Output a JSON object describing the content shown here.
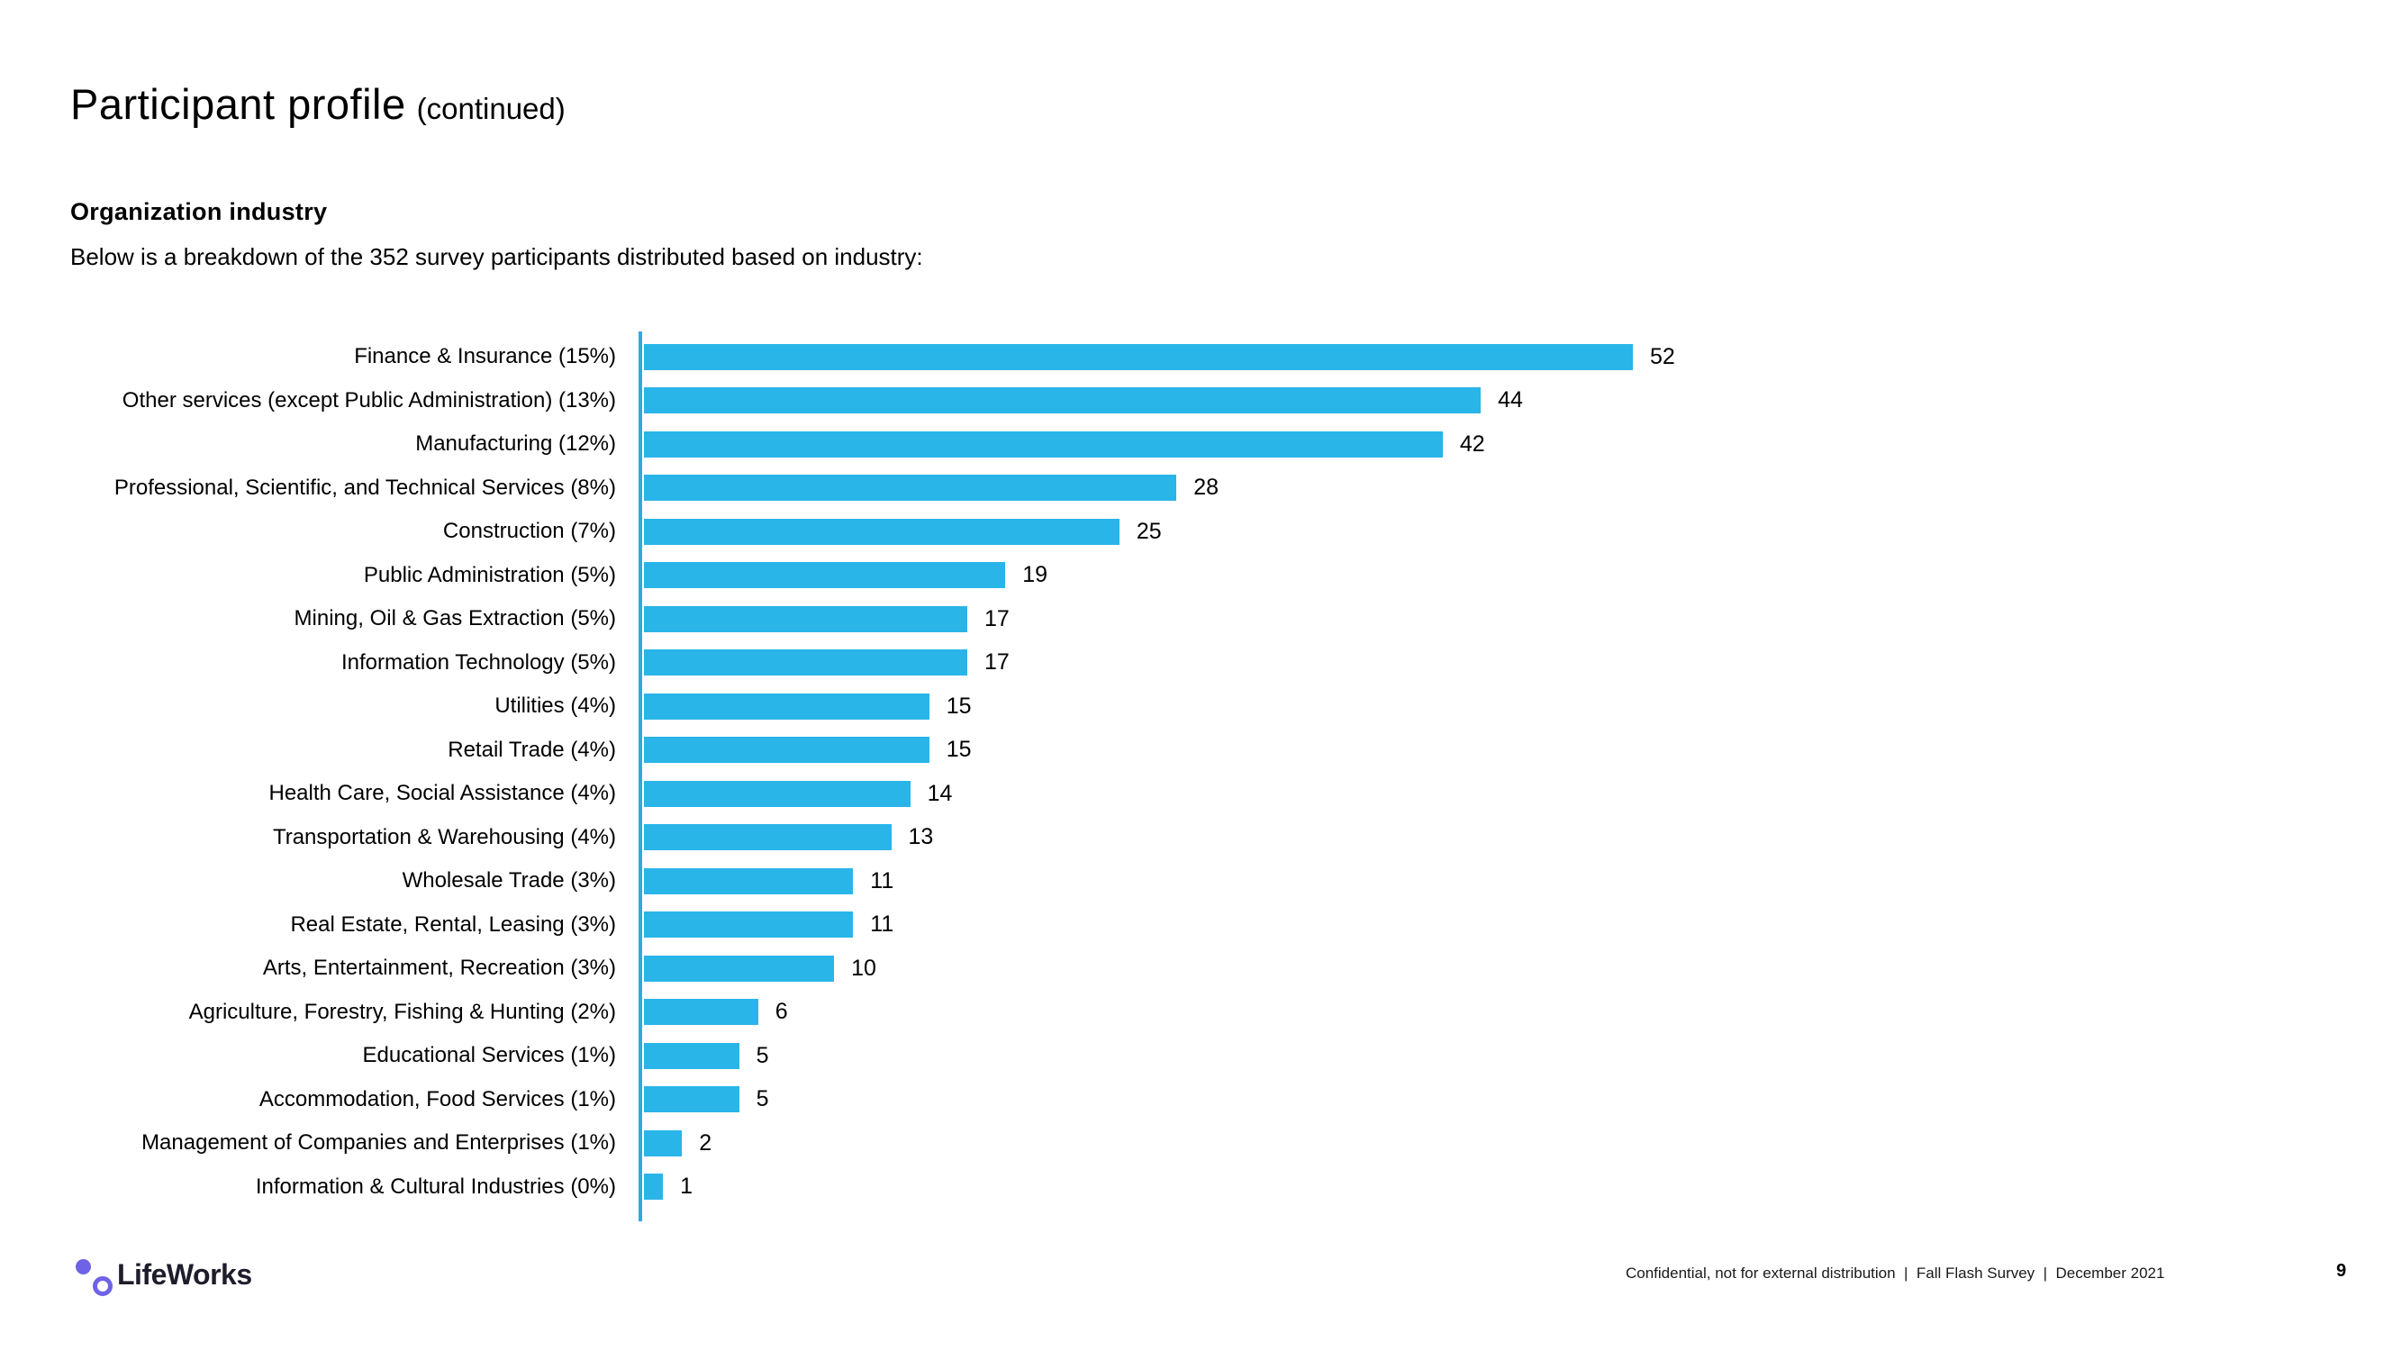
{
  "page": {
    "title": "Participant profile",
    "title_suffix": "(continued)",
    "section_heading": "Organization industry",
    "section_description": "Below is a breakdown of the 352 survey participants distributed based on industry:"
  },
  "chart_data": {
    "type": "bar",
    "orientation": "horizontal",
    "title": "Organization industry",
    "xlabel": "",
    "ylabel": "",
    "legend": false,
    "gridlines": false,
    "data_labels": true,
    "total_participants": 352,
    "bar_color": "#29B5E8",
    "axis_line_color": "#2FA9DE",
    "xlim": [
      0,
      55
    ],
    "categories": [
      "Finance & Insurance (15%)",
      "Other services (except Public Administration) (13%)",
      "Manufacturing (12%)",
      "Professional, Scientific, and Technical Services (8%)",
      "Construction (7%)",
      "Public Administration (5%)",
      "Mining, Oil & Gas Extraction (5%)",
      "Information Technology (5%)",
      "Utilities (4%)",
      "Retail Trade (4%)",
      "Health Care, Social Assistance (4%)",
      "Transportation & Warehousing (4%)",
      "Wholesale Trade (3%)",
      "Real Estate, Rental, Leasing (3%)",
      "Arts, Entertainment, Recreation (3%)",
      "Agriculture, Forestry, Fishing & Hunting (2%)",
      "Educational Services (1%)",
      "Accommodation, Food Services (1%)",
      "Management of Companies and Enterprises (1%)",
      "Information & Cultural Industries (0%)"
    ],
    "values": [
      52,
      44,
      42,
      28,
      25,
      19,
      17,
      17,
      15,
      15,
      14,
      13,
      11,
      11,
      10,
      6,
      5,
      5,
      2,
      1
    ]
  },
  "footer": {
    "logo_text": "LifeWorks",
    "logo_accent_color": "#6E63E6",
    "confidential_note": "Confidential, not for external distribution  |  Fall Flash Survey  |  December 2021",
    "page_number": "9"
  }
}
